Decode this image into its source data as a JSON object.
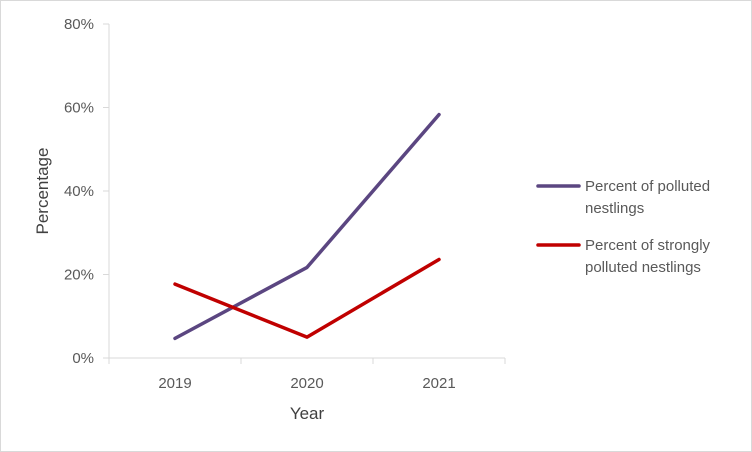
{
  "chart_data": {
    "type": "line",
    "title": "",
    "xlabel": "Year",
    "ylabel": "Percentage",
    "categories": [
      "2019",
      "2020",
      "2021"
    ],
    "ylim": [
      0,
      80
    ],
    "yticks": [
      0,
      20,
      40,
      60,
      80
    ],
    "ytick_suffix": "%",
    "grid": false,
    "legend_position": "right",
    "series": [
      {
        "name": "Percent of polluted nestlings",
        "values": [
          4.7,
          21.7,
          58.3
        ],
        "color": "#5b4681"
      },
      {
        "name": "Percent of strongly polluted nestlings",
        "values": [
          17.7,
          5.0,
          23.6
        ],
        "color": "#c00000"
      }
    ],
    "legend_lines": [
      [
        "Percent of polluted",
        "nestlings"
      ],
      [
        "Percent of strongly",
        "polluted nestlings"
      ]
    ]
  }
}
